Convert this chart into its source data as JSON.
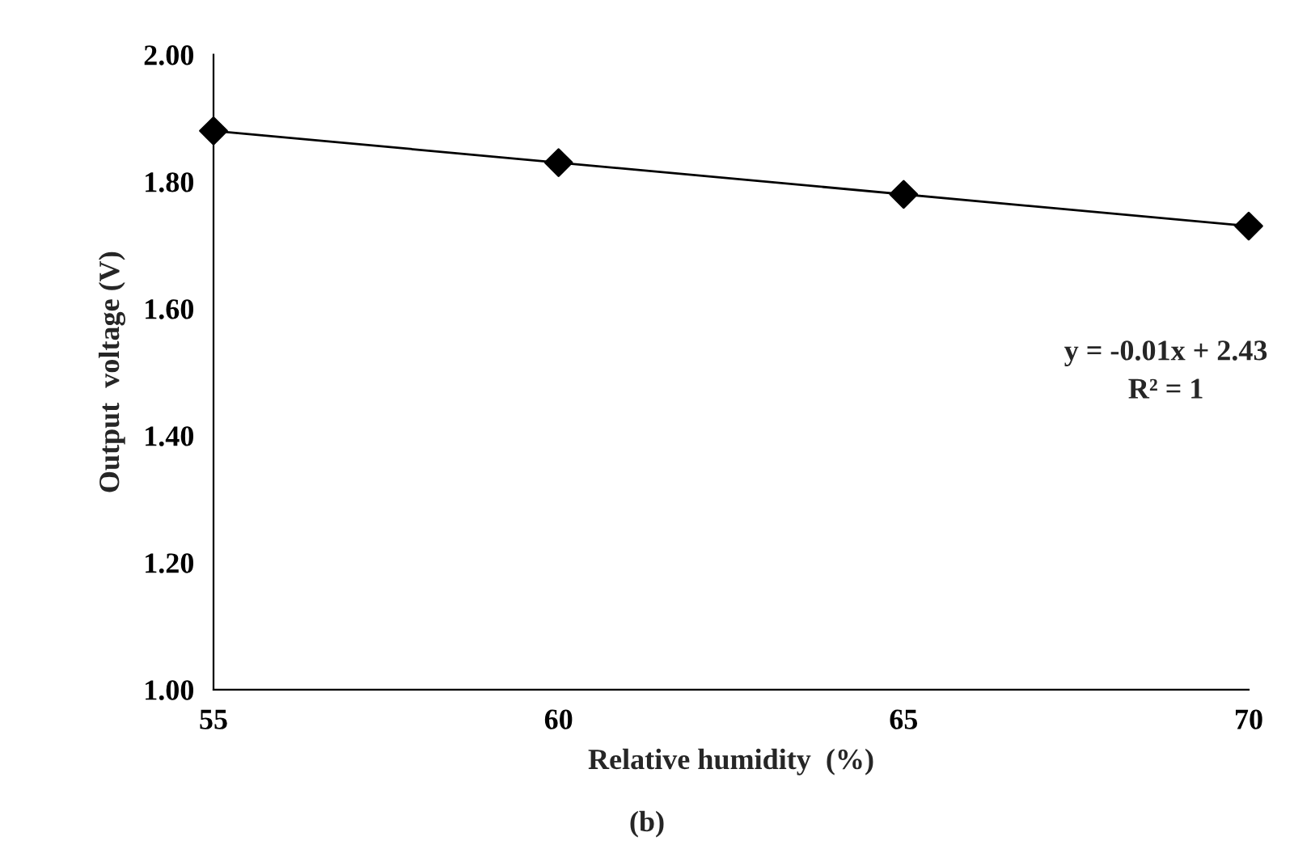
{
  "chart_data": {
    "type": "scatter",
    "xlabel": "Relative humidity  (%)",
    "ylabel": "Output  voltage (V)",
    "x": [
      55,
      60,
      65,
      70
    ],
    "series": [
      {
        "color": "#000000",
        "marker": "diamond",
        "values": [
          1.88,
          1.83,
          1.78,
          1.73
        ]
      },
      {
        "type": "line",
        "color": "#000000",
        "marker": "none",
        "x": [
          55,
          70
        ],
        "values": [
          1.88,
          1.73
        ]
      }
    ],
    "xlim": [
      55,
      70
    ],
    "xticks": [
      55,
      60,
      65,
      70
    ],
    "ylim": [
      1.0,
      2.0
    ],
    "yticks": [
      {
        "value": 1.0,
        "label": "1.00"
      },
      {
        "value": 1.2,
        "label": "1.20"
      },
      {
        "value": 1.4,
        "label": "1.40"
      },
      {
        "value": 1.6,
        "label": "1.60"
      },
      {
        "value": 1.8,
        "label": "1.80"
      },
      {
        "value": 2.0,
        "label": "2.00"
      }
    ],
    "grid": false,
    "legend": false,
    "annotations": [
      "y = -0.01x + 2.43",
      "R² = 1",
      "(b)"
    ]
  }
}
